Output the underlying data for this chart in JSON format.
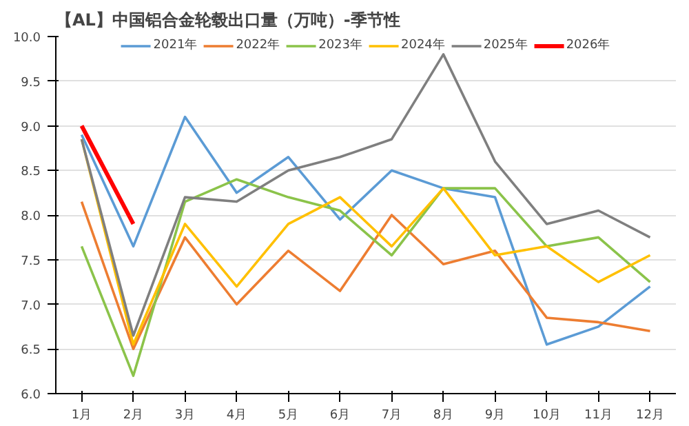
{
  "chart_data": {
    "type": "line",
    "title": "【AL】中国铝合金轮毂出口量（万吨）-季节性",
    "categories": [
      "1月",
      "2月",
      "3月",
      "4月",
      "5月",
      "6月",
      "7月",
      "8月",
      "9月",
      "10月",
      "11月",
      "12月"
    ],
    "series": [
      {
        "name": "2021年",
        "color": "#5b9bd5",
        "values": [
          8.9,
          7.65,
          9.1,
          8.25,
          8.65,
          7.95,
          8.5,
          8.3,
          8.2,
          6.55,
          6.75,
          7.2
        ]
      },
      {
        "name": "2022年",
        "color": "#ed7d31",
        "values": [
          8.15,
          6.5,
          7.75,
          7.0,
          7.6,
          7.15,
          8.0,
          7.45,
          7.6,
          6.85,
          6.8,
          6.7
        ]
      },
      {
        "name": "2023年",
        "color": "#8bc34a",
        "values": [
          7.65,
          6.2,
          8.15,
          8.4,
          8.2,
          8.05,
          7.55,
          8.3,
          8.3,
          7.65,
          7.75,
          7.25
        ]
      },
      {
        "name": "2024年",
        "color": "#ffc000",
        "values": [
          8.85,
          6.55,
          7.9,
          7.2,
          7.9,
          8.2,
          7.65,
          8.3,
          7.55,
          7.65,
          7.25,
          7.55
        ]
      },
      {
        "name": "2025年",
        "color": "#7f7f7f",
        "values": [
          8.85,
          6.65,
          8.2,
          8.15,
          8.5,
          8.65,
          8.85,
          9.8,
          8.6,
          7.9,
          8.05,
          7.75
        ]
      },
      {
        "name": "2026年",
        "color": "#ff0000",
        "values": [
          9.0,
          7.9,
          null,
          null,
          null,
          null,
          null,
          null,
          null,
          null,
          null,
          null
        ]
      }
    ],
    "ylim": [
      6.0,
      10.0
    ],
    "yticks": [
      {
        "value": 6.0,
        "label": "6.0"
      },
      {
        "value": 6.5,
        "label": "6.5"
      },
      {
        "value": 7.0,
        "label": "7.0"
      },
      {
        "value": 7.5,
        "label": "7.5"
      },
      {
        "value": 8.0,
        "label": "8.0"
      },
      {
        "value": 8.5,
        "label": "8.5"
      },
      {
        "value": 9.0,
        "label": "9.0"
      },
      {
        "value": 9.5,
        "label": "9.5"
      },
      {
        "value": 10.0,
        "label": "10.0"
      }
    ],
    "grid": "y",
    "legend": "top",
    "line_style": "solid"
  }
}
